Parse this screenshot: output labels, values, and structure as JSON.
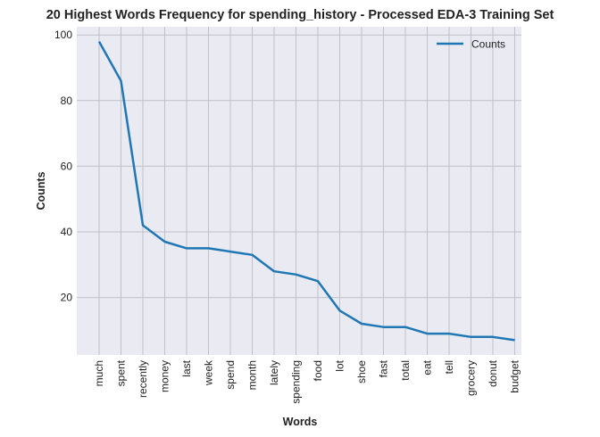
{
  "chart_data": {
    "type": "line",
    "title": "20 Highest Words Frequency for spending_history - Processed EDA-3 Training Set",
    "xlabel": "Words",
    "ylabel": "Counts",
    "categories": [
      "much",
      "spent",
      "recently",
      "money",
      "last",
      "week",
      "spend",
      "month",
      "lately",
      "spending",
      "food",
      "lot",
      "shoe",
      "fast",
      "total",
      "eat",
      "tell",
      "grocery",
      "donut",
      "budget"
    ],
    "series": [
      {
        "name": "Counts",
        "values": [
          98,
          86,
          42,
          37,
          35,
          35,
          34,
          33,
          28,
          27,
          25,
          16,
          12,
          11,
          11,
          9,
          9,
          8,
          8,
          7
        ],
        "color": "#1f77b4"
      }
    ],
    "yticks": [
      20,
      40,
      60,
      80,
      100
    ],
    "ylim": [
      2.5,
      102.5
    ],
    "grid": true,
    "legend": "top-right",
    "plot_bg": "#eaeaf2",
    "grid_color": "#c0c0c8"
  }
}
